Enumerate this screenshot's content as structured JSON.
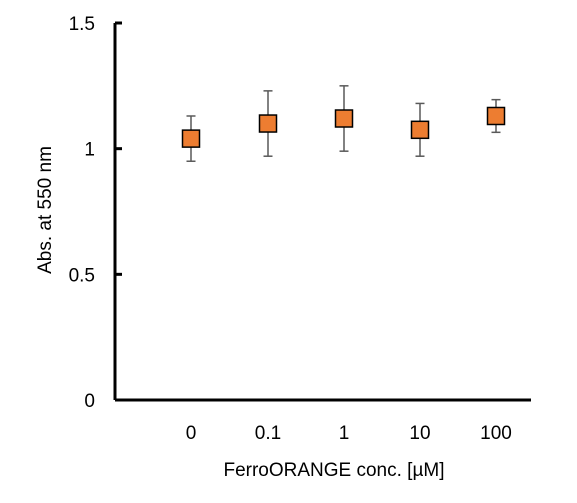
{
  "chart_data": {
    "type": "scatter",
    "xlabel": "FerroORANGE conc. [µM]",
    "ylabel": "Abs. at 550 nm",
    "categories": [
      "0",
      "0.1",
      "1",
      "10",
      "100"
    ],
    "ylim": [
      0,
      1.5
    ],
    "yticks": [
      "0",
      "0.5",
      "1",
      "1.5"
    ],
    "grid": false,
    "legend": "none",
    "marker": "square",
    "marker_color": "#ED7D31",
    "series": [
      {
        "values": [
          1.04,
          1.1,
          1.12,
          1.075,
          1.13
        ],
        "error": [
          0.09,
          0.13,
          0.13,
          0.105,
          0.065
        ]
      }
    ]
  }
}
